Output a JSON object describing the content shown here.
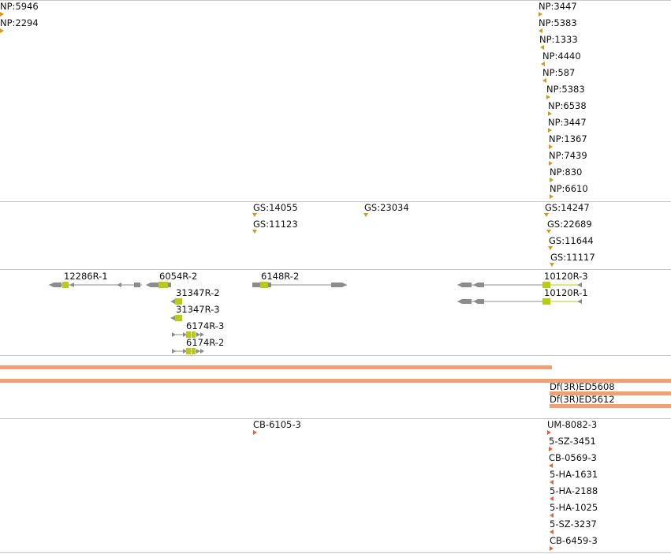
{
  "tracks": {
    "np": {
      "left_labels": [
        "NP:5946",
        "NP:2294"
      ],
      "right_labels": [
        "NP:3447",
        "NP:5383",
        "NP:1333",
        "NP:4440",
        "NP:587",
        "NP:5383",
        "NP:6538",
        "NP:3447",
        "NP:1367",
        "NP:7439",
        "NP:830",
        "NP:6610"
      ]
    },
    "gs": {
      "labels": [
        "GS:14055",
        "GS:11123",
        "GS:23034",
        "GS:14247",
        "GS:22689",
        "GS:11644",
        "GS:11117"
      ]
    },
    "transcripts": {
      "labels": [
        "12286R-1",
        "6054R-2",
        "31347R-2",
        "31347R-3",
        "6174R-3",
        "6174R-2",
        "6148R-2",
        "10120R-3",
        "10120R-1"
      ]
    },
    "deficiency": {
      "labels": [
        "Df(3R)ED5608",
        "Df(3R)ED5612"
      ]
    },
    "insertions": {
      "labels": [
        "CB-6105-3",
        "UM-8082-3",
        "5-SZ-3451",
        "CB-0569-3",
        "5-HA-1631",
        "5-HA-2188",
        "5-HA-1025",
        "5-SZ-3237",
        "CB-6459-3"
      ]
    }
  },
  "colors": {
    "np_marker": "#d49a1c",
    "insertion_marker": "#e4623c",
    "deficiency_bar": "#f0a074",
    "exon": "#b8cc14",
    "intron": "#8c8c8c",
    "divider": "#c8c8c8"
  }
}
